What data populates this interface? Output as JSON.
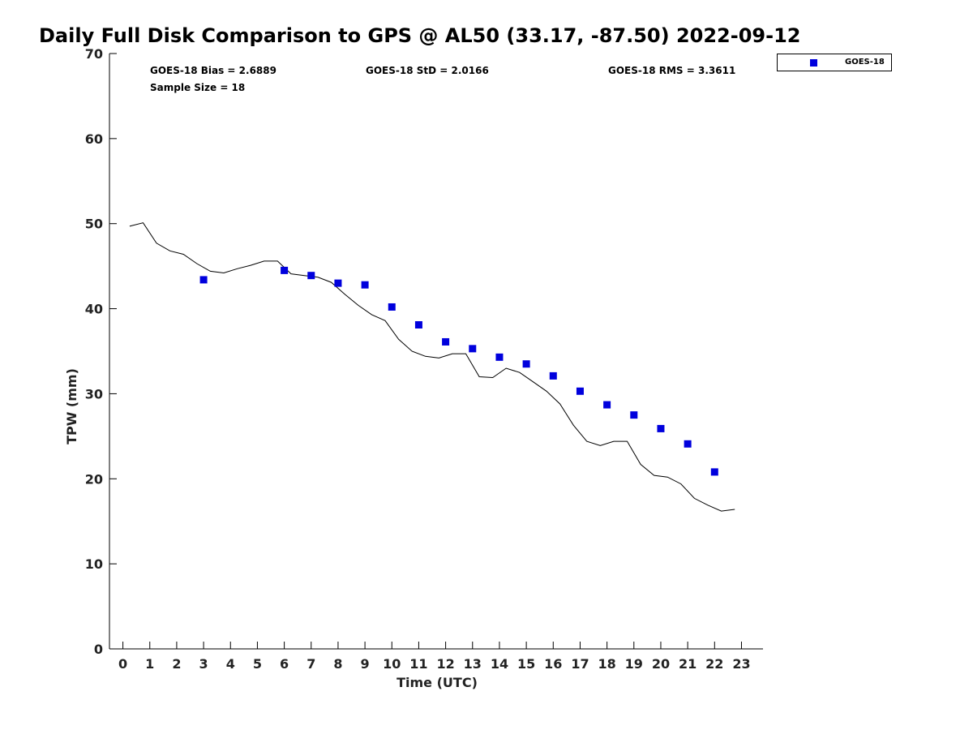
{
  "chart_data": {
    "type": "scatter",
    "title": "Daily Full Disk Comparison to GPS @ AL50 (33.17, -87.50) 2022-09-12",
    "xlabel": "Time (UTC)",
    "ylabel": "TPW (mm)",
    "xlim": [
      -0.5,
      23.8
    ],
    "ylim": [
      0,
      70
    ],
    "xticks": [
      0,
      1,
      2,
      3,
      4,
      5,
      6,
      7,
      8,
      9,
      10,
      11,
      12,
      13,
      14,
      15,
      16,
      17,
      18,
      19,
      20,
      21,
      22,
      23
    ],
    "yticks": [
      0,
      10,
      20,
      30,
      40,
      50,
      60,
      70
    ],
    "stats": {
      "bias": "GOES-18 Bias = 2.6889",
      "std": "GOES-18 StD = 2.0166",
      "rms": "GOES-18 RMS = 3.3611",
      "sample_size": "Sample Size = 18"
    },
    "legend": {
      "label": "GOES-18",
      "position": "top-right"
    },
    "series": [
      {
        "name": "GOES-18",
        "style": "marker",
        "color": "#0000dd",
        "x": [
          3,
          6,
          7,
          8,
          9,
          10,
          11,
          12,
          13,
          14,
          15,
          16,
          17,
          18,
          19,
          20,
          21,
          22
        ],
        "y": [
          43.4,
          44.5,
          43.9,
          43.0,
          42.8,
          40.2,
          38.1,
          36.1,
          35.3,
          34.3,
          33.5,
          32.1,
          30.3,
          28.7,
          27.5,
          25.9,
          24.1,
          20.8
        ]
      },
      {
        "name": "GPS",
        "style": "line",
        "color": "#000000",
        "x": [
          0.25,
          0.75,
          1.25,
          1.75,
          2.25,
          2.75,
          3.25,
          3.75,
          4.25,
          4.75,
          5.25,
          5.75,
          6.25,
          6.75,
          7.25,
          7.75,
          8.25,
          8.75,
          9.25,
          9.75,
          10.25,
          10.75,
          11.25,
          11.75,
          12.25,
          12.75,
          13.25,
          13.75,
          14.25,
          14.75,
          15.25,
          15.75,
          16.25,
          16.75,
          17.25,
          17.75,
          18.25,
          18.75,
          19.25,
          19.75,
          20.25,
          20.75,
          21.25,
          21.75,
          22.25,
          22.75
        ],
        "y": [
          49.7,
          50.1,
          47.7,
          46.8,
          46.4,
          45.3,
          44.4,
          44.2,
          44.7,
          45.1,
          45.6,
          45.6,
          44.1,
          43.9,
          43.7,
          43.1,
          41.7,
          40.4,
          39.3,
          38.6,
          36.4,
          35.0,
          34.4,
          34.2,
          34.7,
          34.7,
          32.0,
          31.9,
          33.0,
          32.5,
          31.4,
          30.3,
          28.8,
          26.3,
          24.4,
          23.9,
          24.4,
          24.4,
          21.7,
          20.4,
          20.2,
          19.4,
          17.7,
          16.9,
          16.2,
          16.4
        ]
      }
    ]
  }
}
